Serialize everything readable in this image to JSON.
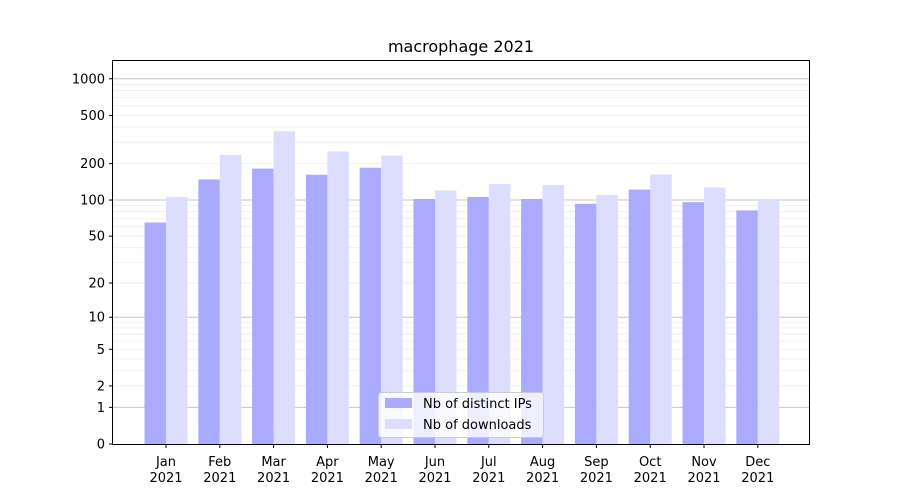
{
  "chart_data": {
    "type": "bar",
    "title": "macrophage 2021",
    "xlabel": "",
    "ylabel": "",
    "y_scale": "symlog",
    "ylim": [
      0,
      1400
    ],
    "y_ticks": [
      0,
      1,
      2,
      5,
      10,
      20,
      50,
      100,
      200,
      500,
      1000
    ],
    "grid": "horizontal",
    "legend_position": "lower-center",
    "categories": [
      {
        "month": "Jan",
        "year": "2021"
      },
      {
        "month": "Feb",
        "year": "2021"
      },
      {
        "month": "Mar",
        "year": "2021"
      },
      {
        "month": "Apr",
        "year": "2021"
      },
      {
        "month": "May",
        "year": "2021"
      },
      {
        "month": "Jun",
        "year": "2021"
      },
      {
        "month": "Jul",
        "year": "2021"
      },
      {
        "month": "Aug",
        "year": "2021"
      },
      {
        "month": "Sep",
        "year": "2021"
      },
      {
        "month": "Oct",
        "year": "2021"
      },
      {
        "month": "Nov",
        "year": "2021"
      },
      {
        "month": "Dec",
        "year": "2021"
      }
    ],
    "series": [
      {
        "name": "Nb of distinct IPs",
        "color": "#aaaaff",
        "values": [
          65,
          148,
          182,
          162,
          185,
          102,
          106,
          102,
          93,
          122,
          96,
          82
        ]
      },
      {
        "name": "Nb of downloads",
        "color": "#ddddff",
        "values": [
          106,
          236,
          370,
          252,
          233,
          120,
          136,
          133,
          110,
          163,
          127,
          100
        ]
      }
    ]
  }
}
